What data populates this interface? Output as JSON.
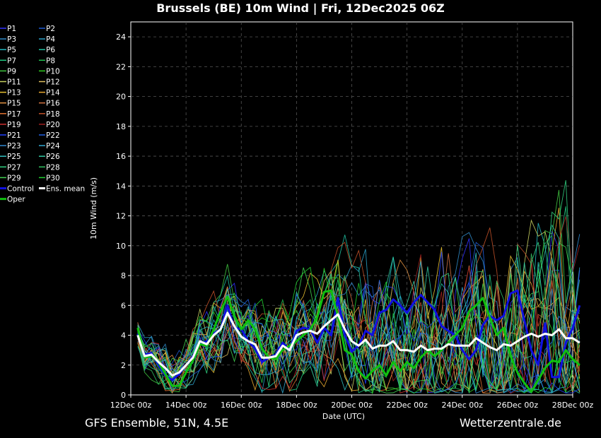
{
  "header": {
    "title": "Brussels  (BE)  10m Wind | Fri, 12Dec2025 06Z"
  },
  "footer": {
    "left": "GFS Ensemble, 51N, 4.5E",
    "right": "Wetterzentrale.de"
  },
  "colors": {
    "background": "#000000",
    "control": "#1010e0",
    "oper": "#10c010",
    "mean": "#ffffff",
    "grid": "#555555"
  },
  "chart_data": {
    "type": "line",
    "title": "Brussels  (BE)  10m Wind | Fri, 12Dec2025 06Z",
    "xlabel": "Date (UTC)",
    "ylabel": "10m Wind (m/s)",
    "ylim": [
      0,
      25
    ],
    "xlim": [
      0,
      16
    ],
    "x_unit": "days since 12Dec 00z",
    "grid": true,
    "legend_position": "left",
    "x_ticks": [
      {
        "x": 0,
        "label": "12Dec 00z"
      },
      {
        "x": 2,
        "label": "14Dec 00z"
      },
      {
        "x": 4,
        "label": "16Dec 00z"
      },
      {
        "x": 6,
        "label": "18Dec 00z"
      },
      {
        "x": 8,
        "label": "20Dec 00z"
      },
      {
        "x": 10,
        "label": "22Dec 00z"
      },
      {
        "x": 12,
        "label": "24Dec 00z"
      },
      {
        "x": 14,
        "label": "26Dec 00z"
      },
      {
        "x": 16,
        "label": "28Dec 00z"
      }
    ],
    "y_ticks": [
      0,
      2,
      4,
      6,
      8,
      10,
      12,
      14,
      16,
      18,
      20,
      22,
      24
    ],
    "x_start": 0.25,
    "x_step": 0.25,
    "highlighted_series": [
      {
        "name": "Ens. mean",
        "color": "#ffffff",
        "width": 3,
        "values": [
          4.0,
          2.6,
          2.7,
          2.2,
          1.8,
          1.3,
          1.5,
          2.0,
          2.5,
          3.6,
          3.4,
          4.0,
          4.4,
          5.5,
          4.6,
          3.9,
          3.6,
          3.4,
          2.5,
          2.5,
          2.6,
          3.3,
          3.0,
          4.0,
          4.2,
          4.3,
          4.1,
          4.6,
          5.0,
          5.4,
          4.4,
          3.6,
          3.3,
          3.7,
          3.1,
          3.3,
          3.3,
          3.6,
          3.0,
          3.0,
          2.9,
          3.3,
          3.0,
          3.1,
          3.1,
          3.4,
          3.3,
          3.3,
          3.3,
          3.8,
          3.5,
          3.2,
          3.0,
          3.4,
          3.3,
          3.6,
          3.9,
          4.1,
          3.9,
          4.1,
          4.0,
          4.4,
          3.8,
          3.8,
          3.5
        ]
      },
      {
        "name": "Control",
        "color": "#1010e0",
        "width": 3,
        "values": [
          4.1,
          2.7,
          2.8,
          2.0,
          1.3,
          1.0,
          1.4,
          2.0,
          2.6,
          3.4,
          3.6,
          4.1,
          4.4,
          6.0,
          4.5,
          4.4,
          3.6,
          3.1,
          2.2,
          2.5,
          2.7,
          3.5,
          3.0,
          4.3,
          4.5,
          4.4,
          3.5,
          4.5,
          4.0,
          6.5,
          4.0,
          2.9,
          3.3,
          4.3,
          4.0,
          5.5,
          5.7,
          6.4,
          6.0,
          5.5,
          6.2,
          6.7,
          6.2,
          5.7,
          4.6,
          4.3,
          4.0,
          3.0,
          2.4,
          3.0,
          4.7,
          5.3,
          5.0,
          5.3,
          6.8,
          7.0,
          5.0,
          3.0,
          2.0,
          4.8,
          1.2,
          1.2,
          3.5,
          4.5,
          6.0
        ]
      },
      {
        "name": "Oper",
        "color": "#10c010",
        "width": 3,
        "values": [
          4.5,
          2.5,
          2.6,
          2.2,
          1.4,
          0.6,
          0.6,
          1.5,
          2.3,
          3.4,
          3.3,
          4.4,
          5.6,
          6.6,
          5.3,
          4.4,
          5.0,
          4.4,
          3.1,
          2.5,
          2.4,
          3.0,
          3.3,
          3.6,
          4.0,
          4.4,
          5.2,
          6.9,
          7.0,
          5.3,
          3.0,
          2.7,
          1.6,
          1.1,
          1.6,
          2.0,
          1.3,
          2.2,
          1.6,
          2.2,
          1.8,
          2.5,
          3.0,
          2.6,
          3.0,
          3.5,
          4.0,
          4.5,
          5.6,
          6.0,
          6.5,
          5.2,
          4.0,
          4.5,
          2.6,
          1.5,
          0.8,
          0.2,
          1.0,
          1.8,
          2.3,
          2.2,
          3.0,
          2.4,
          2.0
        ]
      }
    ],
    "legend": [
      [
        "P1",
        "#3030ff"
      ],
      [
        "P2",
        "#1e5ad2"
      ],
      [
        "P3",
        "#2f8ac8"
      ],
      [
        "P4",
        "#2aa0c8"
      ],
      [
        "P5",
        "#20b8c0"
      ],
      [
        "P6",
        "#20c0a0"
      ],
      [
        "P7",
        "#20c880"
      ],
      [
        "P8",
        "#20c050"
      ],
      [
        "P9",
        "#40c840"
      ],
      [
        "P10",
        "#30d020"
      ],
      [
        "P11",
        "#c8d060"
      ],
      [
        "P12",
        "#e0c060"
      ],
      [
        "P13",
        "#e8c030"
      ],
      [
        "P14",
        "#e8a830"
      ],
      [
        "P15",
        "#e09040"
      ],
      [
        "P16",
        "#d07040"
      ],
      [
        "P17",
        "#e07030"
      ],
      [
        "P18",
        "#c05028"
      ],
      [
        "P19",
        "#d03030"
      ],
      [
        "P20",
        "#a02020"
      ],
      [
        "P21",
        "#2040ff"
      ],
      [
        "P22",
        "#2060e0"
      ],
      [
        "P23",
        "#3088d0"
      ],
      [
        "P24",
        "#30a8d0"
      ],
      [
        "P25",
        "#30c0c0"
      ],
      [
        "P26",
        "#30c8a0"
      ],
      [
        "P27",
        "#30d080"
      ],
      [
        "P28",
        "#30c060"
      ],
      [
        "P29",
        "#40d050"
      ],
      [
        "P30",
        "#20d030"
      ],
      [
        "Control",
        "#1010e0"
      ],
      [
        "Ens. mean",
        "#ffffff"
      ],
      [
        "Oper",
        "#10c010"
      ]
    ]
  }
}
